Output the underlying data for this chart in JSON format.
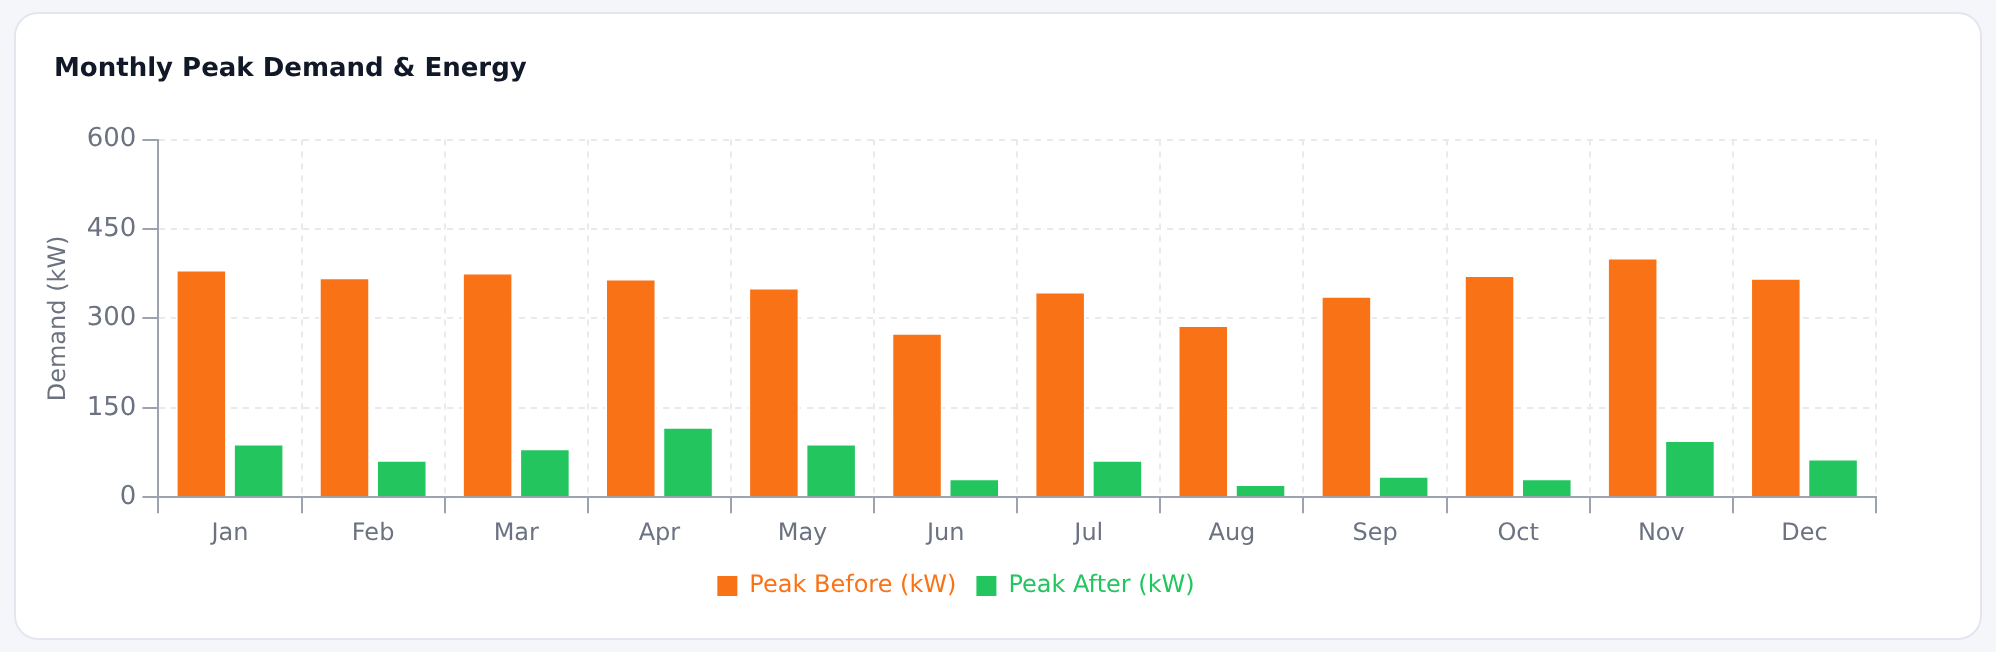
{
  "chart_data": {
    "type": "bar",
    "title": "Monthly Peak Demand & Energy",
    "ylabel": "Demand (kW)",
    "categories": [
      "Jan",
      "Feb",
      "Mar",
      "Apr",
      "May",
      "Jun",
      "Jul",
      "Aug",
      "Sep",
      "Oct",
      "Nov",
      "Dec"
    ],
    "series": [
      {
        "name": "Peak Before (kW)",
        "color": "#f97316",
        "values": [
          382,
          369,
          377,
          367,
          352,
          276,
          345,
          289,
          338,
          373,
          402,
          368
        ]
      },
      {
        "name": "Peak After (kW)",
        "color": "#22c55e",
        "values": [
          90,
          63,
          82,
          118,
          90,
          32,
          63,
          22,
          36,
          32,
          96,
          65
        ]
      }
    ],
    "ylim": [
      0,
      600
    ],
    "yticks": [
      0,
      150,
      300,
      450,
      600
    ],
    "grid": true,
    "legend": "bottom"
  }
}
